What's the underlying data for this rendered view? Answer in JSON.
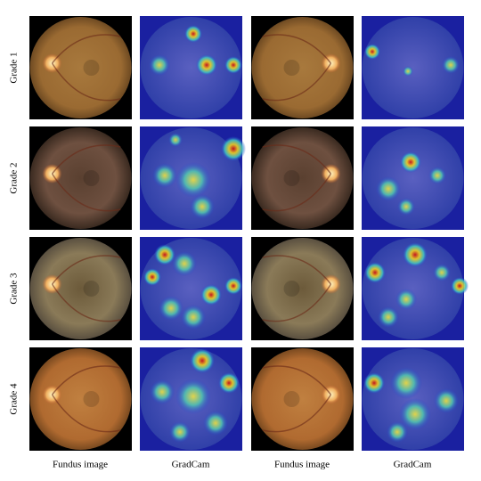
{
  "figure": {
    "row_labels": [
      "Grade 1",
      "Grade 2",
      "Grade 3",
      "Grade 4"
    ],
    "column_labels": [
      "Fundus image",
      "GradCam",
      "Fundus image",
      "GradCam"
    ]
  }
}
